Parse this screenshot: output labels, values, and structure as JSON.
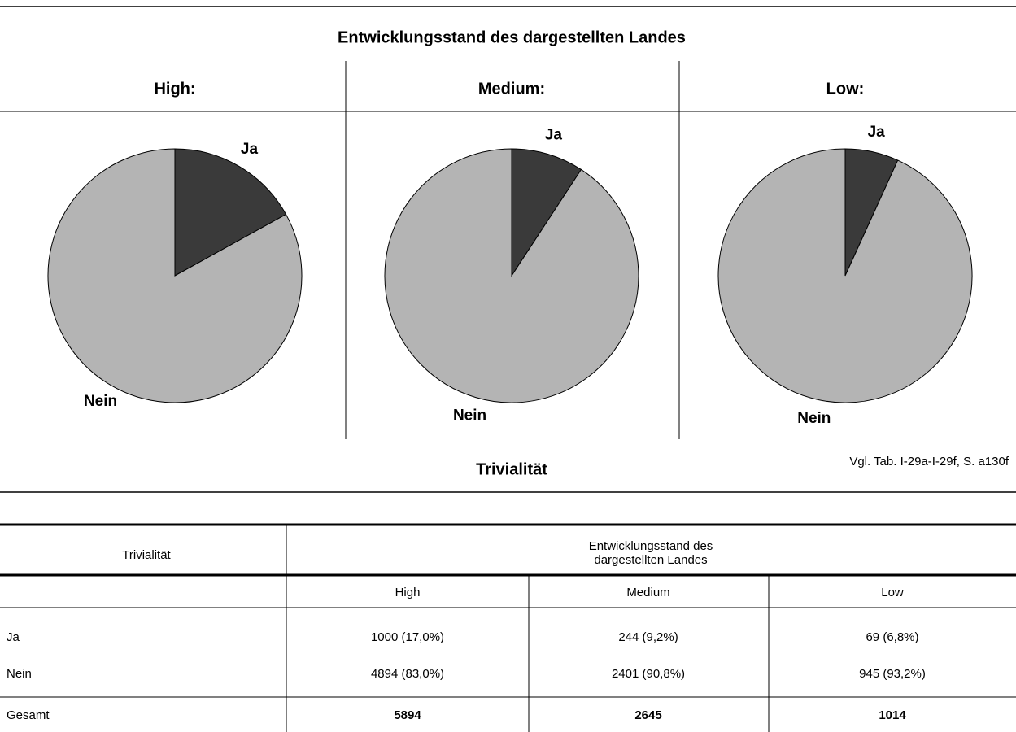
{
  "header": {
    "title": "Entwicklungsstand des dargestellten Landes",
    "x_label": "Trivialität",
    "source": "Vgl. Tab. I-29a-I-29f, S. a130f"
  },
  "chart_data": [
    {
      "type": "pie",
      "title": "High:",
      "categories": [
        "Ja",
        "Nein"
      ],
      "values": [
        1000,
        4894
      ],
      "colors": [
        "#3a3a3a",
        "#b4b4b4"
      ]
    },
    {
      "type": "pie",
      "title": "Medium:",
      "categories": [
        "Ja",
        "Nein"
      ],
      "values": [
        244,
        2401
      ],
      "colors": [
        "#3a3a3a",
        "#b4b4b4"
      ]
    },
    {
      "type": "pie",
      "title": "Low:",
      "categories": [
        "Ja",
        "Nein"
      ],
      "values": [
        69,
        945
      ],
      "colors": [
        "#3a3a3a",
        "#b4b4b4"
      ]
    }
  ],
  "table": {
    "corner": "Trivialität",
    "group_header": "Entwicklungsstand des dargestellten Landes",
    "columns": [
      "High",
      "Medium",
      "Low"
    ],
    "rows": [
      [
        "Ja",
        "1000 (17,0%)",
        "244 (9,2%)",
        "69 (6,8%)"
      ],
      [
        "Nein",
        "4894 (83,0%)",
        "2401 (90,8%)",
        "945 (93,2%)"
      ],
      [
        "Gesamt",
        "5894",
        "2645",
        "1014"
      ]
    ]
  }
}
